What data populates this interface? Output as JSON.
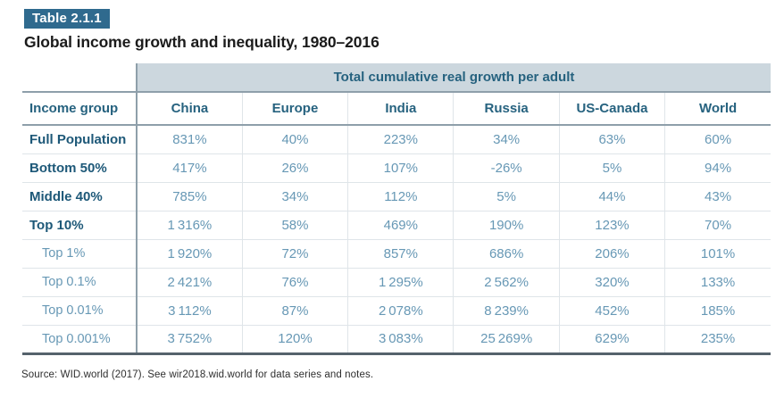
{
  "header": {
    "badge": "Table 2.1.1",
    "title": "Global income growth and inequality, 1980–2016"
  },
  "table": {
    "group_header": "Total cumulative real growth per adult",
    "columns": [
      "Income group",
      "China",
      "Europe",
      "India",
      "Russia",
      "US-Canada",
      "World"
    ],
    "rows": [
      {
        "label": "Full Population",
        "values": [
          "831%",
          "40%",
          "223%",
          "34%",
          "63%",
          "60%"
        ]
      },
      {
        "label": "Bottom 50%",
        "values": [
          "417%",
          "26%",
          "107%",
          "-26%",
          "5%",
          "94%"
        ]
      },
      {
        "label": "Middle 40%",
        "values": [
          "785%",
          "34%",
          "112%",
          "5%",
          "44%",
          "43%"
        ]
      },
      {
        "label": "Top 10%",
        "values": [
          "1 316%",
          "58%",
          "469%",
          "190%",
          "123%",
          "70%"
        ]
      },
      {
        "label": "Top 1%",
        "values": [
          "1 920%",
          "72%",
          "857%",
          "686%",
          "206%",
          "101%"
        ]
      },
      {
        "label": "Top 0.1%",
        "values": [
          "2 421%",
          "76%",
          "1 295%",
          "2 562%",
          "320%",
          "133%"
        ]
      },
      {
        "label": "Top 0.01%",
        "values": [
          "3 112%",
          "87%",
          "2 078%",
          "8 239%",
          "452%",
          "185%"
        ]
      },
      {
        "label": "Top 0.001%",
        "values": [
          "3 752%",
          "120%",
          "3 083%",
          "25 269%",
          "629%",
          "235%"
        ]
      }
    ]
  },
  "footer": {
    "source": "Source: WID.world (2017). See wir2018.wid.world for data series and notes."
  },
  "colors": {
    "badge_background": "#2F6A8E",
    "band_background": "#CCD7DE",
    "header_text": "#26627F",
    "row_label_text": "#1D5878",
    "value_text": "#6798B5",
    "dark_rule": "#8E9FAA",
    "light_rule": "#DFE5E9",
    "bottom_rule": "#55626C"
  },
  "chart_data": {
    "type": "table",
    "table_number": "Table 2.1.1",
    "title": "Global income growth and inequality, 1980–2016",
    "column_group_header": "Total cumulative real growth per adult",
    "unit": "percent (total cumulative real growth per adult, 1980–2016)",
    "columns": [
      "China",
      "Europe",
      "India",
      "Russia",
      "US-Canada",
      "World"
    ],
    "row_labels": [
      "Full Population",
      "Bottom 50%",
      "Middle 40%",
      "Top 10%",
      "Top 1%",
      "Top 0.1%",
      "Top 0.01%",
      "Top 0.001%"
    ],
    "values": [
      [
        831,
        40,
        223,
        34,
        63,
        60
      ],
      [
        417,
        26,
        107,
        -26,
        5,
        94
      ],
      [
        785,
        34,
        112,
        5,
        44,
        43
      ],
      [
        1316,
        58,
        469,
        190,
        123,
        70
      ],
      [
        1920,
        72,
        857,
        686,
        206,
        101
      ],
      [
        2421,
        76,
        1295,
        2562,
        320,
        133
      ],
      [
        3112,
        87,
        2078,
        8239,
        452,
        185
      ],
      [
        3752,
        120,
        3083,
        25269,
        629,
        235
      ]
    ],
    "source": "Source: WID.world (2017). See wir2018.wid.world for data series and notes."
  }
}
